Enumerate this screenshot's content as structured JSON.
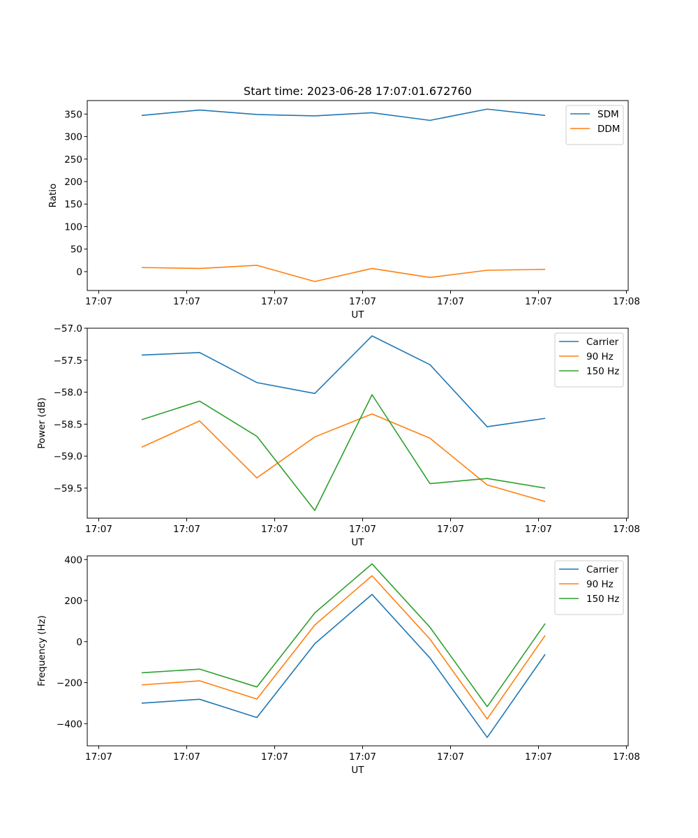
{
  "figure_title": "Start time: 2023-06-28 17:07:01.672760",
  "colors": {
    "blue": "#1f77b4",
    "orange": "#ff7f0e",
    "green": "#2ca02c"
  },
  "chart_data": [
    {
      "type": "line",
      "title": "Start time: 2023-06-28 17:07:01.672760",
      "xlabel": "UT",
      "ylabel": "Ratio",
      "x_tick_labels": [
        "17:07",
        "17:07",
        "17:07",
        "17:07",
        "17:07",
        "17:07",
        "17:08"
      ],
      "y_ticks": [
        0,
        50,
        100,
        150,
        200,
        250,
        300,
        350
      ],
      "ylim": [
        -42,
        380
      ],
      "grid": false,
      "legend": "top-right",
      "series": [
        {
          "name": "SDM",
          "color": "#1f77b4",
          "values": [
            347,
            359,
            349,
            346,
            353,
            336,
            361,
            347
          ]
        },
        {
          "name": "DDM",
          "color": "#ff7f0e",
          "values": [
            9,
            7,
            14,
            -22,
            7,
            -13,
            3,
            5
          ]
        }
      ]
    },
    {
      "type": "line",
      "xlabel": "UT",
      "ylabel": "Power (dB)",
      "x_tick_labels": [
        "17:07",
        "17:07",
        "17:07",
        "17:07",
        "17:07",
        "17:07",
        "17:08"
      ],
      "y_ticks": [
        -57.0,
        -57.5,
        -58.0,
        -58.5,
        -59.0,
        -59.5
      ],
      "y_tick_labels": [
        "−57.0",
        "−57.5",
        "−58.0",
        "−58.5",
        "−59.0",
        "−59.5"
      ],
      "ylim": [
        -59.97,
        -57.0
      ],
      "grid": false,
      "legend": "top-right",
      "series": [
        {
          "name": "Carrier",
          "color": "#1f77b4",
          "values": [
            -57.42,
            -57.38,
            -57.85,
            -58.02,
            -57.12,
            -57.57,
            -58.54,
            -58.41
          ]
        },
        {
          "name": "90 Hz",
          "color": "#ff7f0e",
          "values": [
            -58.86,
            -58.45,
            -59.34,
            -58.7,
            -58.34,
            -58.72,
            -59.45,
            -59.71
          ]
        },
        {
          "name": "150 Hz",
          "color": "#2ca02c",
          "values": [
            -58.43,
            -58.14,
            -58.69,
            -59.85,
            -58.04,
            -59.43,
            -59.35,
            -59.5
          ]
        }
      ]
    },
    {
      "type": "line",
      "xlabel": "UT",
      "ylabel": "Frequency (Hz)",
      "x_tick_labels": [
        "17:07",
        "17:07",
        "17:07",
        "17:07",
        "17:07",
        "17:07",
        "17:08"
      ],
      "y_ticks": [
        -400,
        -200,
        0,
        200,
        400
      ],
      "y_tick_labels": [
        "−400",
        "−200",
        "0",
        "200",
        "400"
      ],
      "ylim": [
        -508,
        418
      ],
      "grid": false,
      "legend": "top-right",
      "series": [
        {
          "name": "Carrier",
          "color": "#1f77b4",
          "values": [
            -300,
            -281,
            -370,
            -10,
            230,
            -80,
            -467,
            -62
          ]
        },
        {
          "name": "90 Hz",
          "color": "#ff7f0e",
          "values": [
            -211,
            -191,
            -280,
            81,
            321,
            12,
            -377,
            30
          ]
        },
        {
          "name": "150 Hz",
          "color": "#2ca02c",
          "values": [
            -152,
            -134,
            -221,
            140,
            379,
            70,
            -317,
            88
          ]
        }
      ]
    }
  ]
}
